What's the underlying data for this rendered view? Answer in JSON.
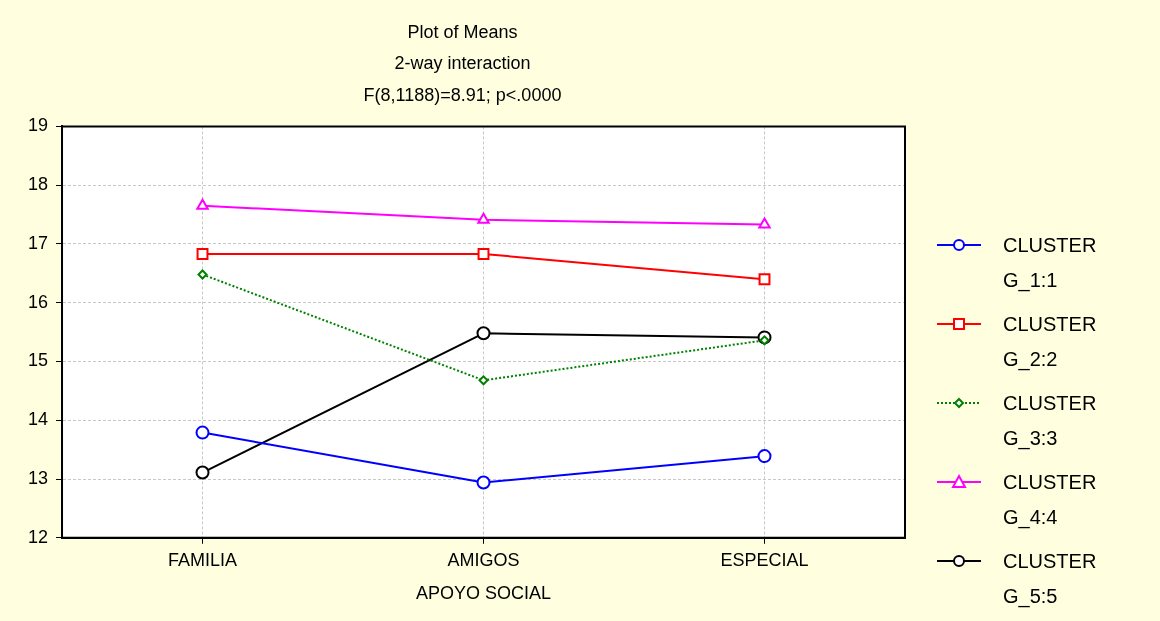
{
  "chart_data": {
    "type": "line",
    "title": "Plot of Means",
    "subtitle": "2-way interaction",
    "annotations": [
      "F(8,1188)=8.91; p<.0000"
    ],
    "xlabel": "APOYO SOCIAL",
    "categories": [
      "FAMILIA",
      "AMIGOS",
      "ESPECIAL"
    ],
    "series": [
      {
        "name": "CLUSTER G_1:1",
        "color": "#0000ff",
        "marker": "circle",
        "line_style": "solid",
        "values": [
          13.79,
          12.94,
          13.39
        ]
      },
      {
        "name": "CLUSTER G_2:2",
        "color": "#ff0000",
        "marker": "square",
        "line_style": "solid",
        "values": [
          16.83,
          16.83,
          16.4
        ]
      },
      {
        "name": "CLUSTER G_3:3",
        "color": "#008000",
        "marker": "diamond",
        "line_style": "dotted",
        "values": [
          16.48,
          14.68,
          15.36
        ]
      },
      {
        "name": "CLUSTER G_4:4",
        "color": "#ff00ff",
        "marker": "triangle",
        "line_style": "solid",
        "values": [
          17.65,
          17.41,
          17.33
        ]
      },
      {
        "name": "CLUSTER G_5:5",
        "color": "#000000",
        "marker": "circle",
        "line_style": "solid",
        "values": [
          13.11,
          15.48,
          15.41
        ]
      }
    ],
    "ylim": [
      12,
      19
    ],
    "yticks": [
      12,
      13,
      14,
      15,
      16,
      17,
      18,
      19
    ],
    "grid": true,
    "legend": "right"
  }
}
